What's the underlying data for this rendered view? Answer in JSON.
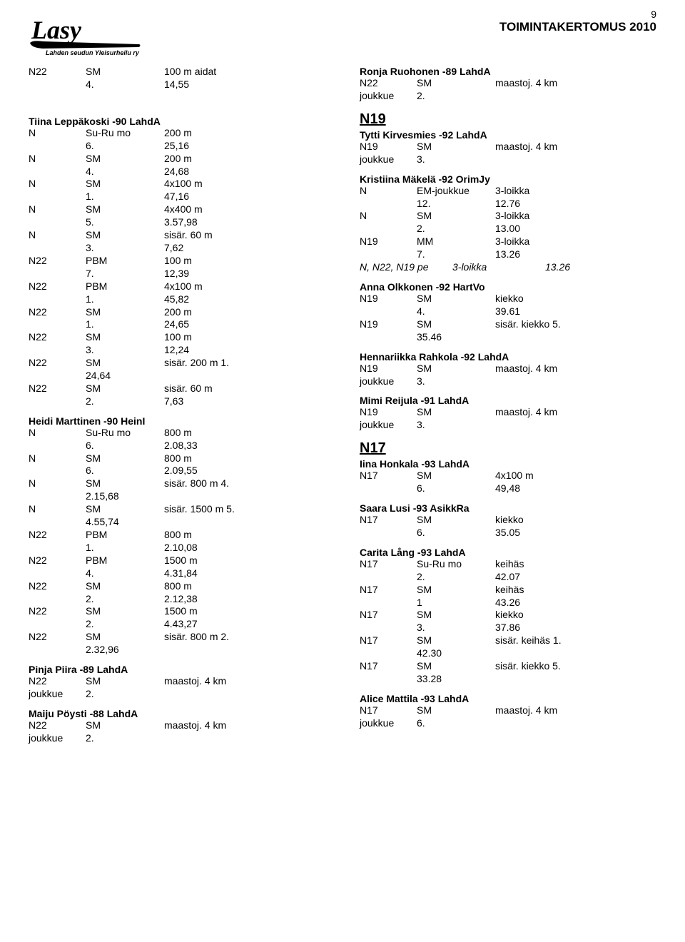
{
  "page_number": "9",
  "header": {
    "org_line": "Lahden seudun Yleisurheilu ry",
    "title": "TOIMINTAKERTOMUS 2010",
    "logo_text": "Lasy"
  },
  "left": {
    "top": [
      {
        "c1": "N22",
        "c2": "SM",
        "c3": "100 m aidat"
      },
      {
        "c1": "",
        "c2": "4.",
        "c3": "14,55"
      }
    ],
    "leppakoski": {
      "name": "Tiina Leppäkoski -90 LahdA",
      "rows": [
        {
          "c1": "N",
          "c2": "Su-Ru mo",
          "c3": "200 m"
        },
        {
          "c1": "",
          "c2": "6.",
          "c3": "25,16"
        },
        {
          "c1": "N",
          "c2": "SM",
          "c3": "200 m"
        },
        {
          "c1": "",
          "c2": "4.",
          "c3": "24,68"
        },
        {
          "c1": "N",
          "c2": "SM",
          "c3": "4x100 m"
        },
        {
          "c1": "",
          "c2": "1.",
          "c3": "47,16"
        },
        {
          "c1": "N",
          "c2": "SM",
          "c3": "4x400 m"
        },
        {
          "c1": "",
          "c2": "5.",
          "c3": "3.57,98"
        },
        {
          "c1": "N",
          "c2": "SM",
          "c3": "sisär. 60 m"
        },
        {
          "c1": "",
          "c2": "3.",
          "c3": "7,62"
        },
        {
          "c1": "N22",
          "c2": "PBM",
          "c3": "100 m"
        },
        {
          "c1": "",
          "c2": "7.",
          "c3": "12,39"
        },
        {
          "c1": "N22",
          "c2": "PBM",
          "c3": "4x100 m"
        },
        {
          "c1": "",
          "c2": "1.",
          "c3": "45,82"
        },
        {
          "c1": "N22",
          "c2": "SM",
          "c3": "200 m"
        },
        {
          "c1": "",
          "c2": "1.",
          "c3": "24,65"
        },
        {
          "c1": "N22",
          "c2": "SM",
          "c3": "100 m"
        },
        {
          "c1": "",
          "c2": "3.",
          "c3": "12,24"
        },
        {
          "c1": "N22",
          "c2": "SM",
          "c3": "sisär. 200 m   1."
        },
        {
          "c1": "",
          "c2": "24,64",
          "c3": ""
        },
        {
          "c1": "N22",
          "c2": "SM",
          "c3": "sisär. 60 m"
        },
        {
          "c1": "",
          "c2": "2.",
          "c3": "7,63"
        }
      ]
    },
    "marttinen": {
      "name": "Heidi Marttinen -90 HeinI",
      "rows": [
        {
          "c1": "N",
          "c2": "Su-Ru mo",
          "c3": "800 m"
        },
        {
          "c1": "",
          "c2": "6.",
          "c3": "2.08,33"
        },
        {
          "c1": "N",
          "c2": "SM",
          "c3": "800 m"
        },
        {
          "c1": "",
          "c2": "6.",
          "c3": "2.09,55"
        },
        {
          "c1": "N",
          "c2": "SM",
          "c3": "sisär. 800 m   4."
        },
        {
          "c1": "",
          "c2": "2.15,68",
          "c3": ""
        },
        {
          "c1": "N",
          "c2": "SM",
          "c3": "sisär. 1500 m 5."
        },
        {
          "c1": "",
          "c2": "4.55,74",
          "c3": ""
        },
        {
          "c1": "N22",
          "c2": "PBM",
          "c3": "800 m"
        },
        {
          "c1": "",
          "c2": "1.",
          "c3": "2.10,08"
        },
        {
          "c1": "N22",
          "c2": "PBM",
          "c3": "1500 m"
        },
        {
          "c1": "",
          "c2": "4.",
          "c3": "4.31,84"
        },
        {
          "c1": "N22",
          "c2": "SM",
          "c3": "800 m"
        },
        {
          "c1": "",
          "c2": "2.",
          "c3": "2.12,38"
        },
        {
          "c1": "N22",
          "c2": "SM",
          "c3": "1500 m"
        },
        {
          "c1": "",
          "c2": "2.",
          "c3": "4.43,27"
        },
        {
          "c1": "N22",
          "c2": "SM",
          "c3": "sisär. 800 m   2."
        },
        {
          "c1": "",
          "c2": "2.32,96",
          "c3": ""
        }
      ]
    },
    "piira": {
      "name": "Pinja Piira -89 LahdA",
      "rows": [
        {
          "c1": "N22",
          "c2": "SM",
          "c3": "maastoj. 4 km"
        },
        {
          "c1": "joukkue",
          "c2": "2.",
          "c3": ""
        }
      ]
    },
    "poysti": {
      "name": "Maiju Pöysti -88 LahdA",
      "rows": [
        {
          "c1": "N22",
          "c2": "SM",
          "c3": "maastoj. 4 km"
        },
        {
          "c1": "joukkue",
          "c2": "2.",
          "c3": ""
        }
      ]
    }
  },
  "right": {
    "ruohonen": {
      "name": "Ronja Ruohonen -89 LahdA",
      "rows": [
        {
          "c1": "N22",
          "c2": "SM",
          "c3": "maastoj. 4 km"
        },
        {
          "c1": "joukkue",
          "c2": "2.",
          "c3": ""
        }
      ]
    },
    "cat_n19": "N19",
    "kirvesmies": {
      "name": "Tytti Kirvesmies -92 LahdA",
      "rows": [
        {
          "c1": "N19",
          "c2": "SM",
          "c3": "maastoj. 4 km"
        },
        {
          "c1": "joukkue",
          "c2": "3.",
          "c3": ""
        }
      ]
    },
    "makela": {
      "name": "Kristiina Mäkelä -92 OrimJy",
      "rows": [
        {
          "c1": "N",
          "c2": "EM-joukkue",
          "c3": "3-loikka"
        },
        {
          "c1": "",
          "c2": "12.",
          "c3": "12.76"
        },
        {
          "c1": "N",
          "c2": "SM",
          "c3": "3-loikka"
        },
        {
          "c1": "",
          "c2": "2.",
          "c3": "13.00"
        },
        {
          "c1": "N19",
          "c2": "MM",
          "c3": "3-loikka"
        },
        {
          "c1": "",
          "c2": "7.",
          "c3": "13.26"
        }
      ],
      "italic": {
        "c1": "N, N22, N19 pe",
        "c3": "3-loikka",
        "c4": "13.26"
      }
    },
    "olkkonen": {
      "name": "Anna Olkkonen -92 HartVo",
      "rows": [
        {
          "c1": "N19",
          "c2": "SM",
          "c3": "kiekko"
        },
        {
          "c1": "",
          "c2": "4.",
          "c3": "39.61"
        },
        {
          "c1": "N19",
          "c2": "SM",
          "c3": "sisär. kiekko   5."
        },
        {
          "c1": "",
          "c2": "35.46",
          "c3": ""
        }
      ]
    },
    "rahkola": {
      "name": "Hennariikka Rahkola -92 LahdA",
      "rows": [
        {
          "c1": "N19",
          "c2": "SM",
          "c3": "maastoj. 4 km"
        },
        {
          "c1": "joukkue",
          "c2": "3.",
          "c3": ""
        }
      ]
    },
    "reijula": {
      "name": "Mimi Reijula -91 LahdA",
      "rows": [
        {
          "c1": "N19",
          "c2": "SM",
          "c3": "maastoj. 4 km"
        },
        {
          "c1": "joukkue",
          "c2": "3.",
          "c3": ""
        }
      ]
    },
    "cat_n17": "N17",
    "honkala": {
      "name": "Iina Honkala -93 LahdA",
      "rows": [
        {
          "c1": "N17",
          "c2": "SM",
          "c3": "4x100 m"
        },
        {
          "c1": "",
          "c2": "6.",
          "c3": "49,48"
        }
      ]
    },
    "lusi": {
      "name": "Saara Lusi -93 AsikkRa",
      "rows": [
        {
          "c1": "N17",
          "c2": "SM",
          "c3": "kiekko"
        },
        {
          "c1": "",
          "c2": "6.",
          "c3": "35.05"
        }
      ]
    },
    "lang": {
      "name": "Carita Lång -93 LahdA",
      "rows": [
        {
          "c1": "N17",
          "c2": "Su-Ru mo",
          "c3": "keihäs"
        },
        {
          "c1": "",
          "c2": "2.",
          "c3": "42.07"
        },
        {
          "c1": "N17",
          "c2": "SM",
          "c3": "keihäs"
        },
        {
          "c1": "",
          "c2": "1",
          "c3": "43.26"
        },
        {
          "c1": "N17",
          "c2": "SM",
          "c3": "kiekko"
        },
        {
          "c1": "",
          "c2": "3.",
          "c3": "37.86"
        },
        {
          "c1": "N17",
          "c2": "SM",
          "c3": "sisär. keihäs   1."
        },
        {
          "c1": "",
          "c2": "42.30",
          "c3": ""
        },
        {
          "c1": "N17",
          "c2": "SM",
          "c3": "sisär. kiekko   5."
        },
        {
          "c1": "",
          "c2": "33.28",
          "c3": ""
        }
      ]
    },
    "mattila": {
      "name": "Alice Mattila -93 LahdA",
      "rows": [
        {
          "c1": "N17",
          "c2": "SM",
          "c3": "maastoj. 4 km"
        },
        {
          "c1": "joukkue",
          "c2": "6.",
          "c3": ""
        }
      ]
    }
  }
}
